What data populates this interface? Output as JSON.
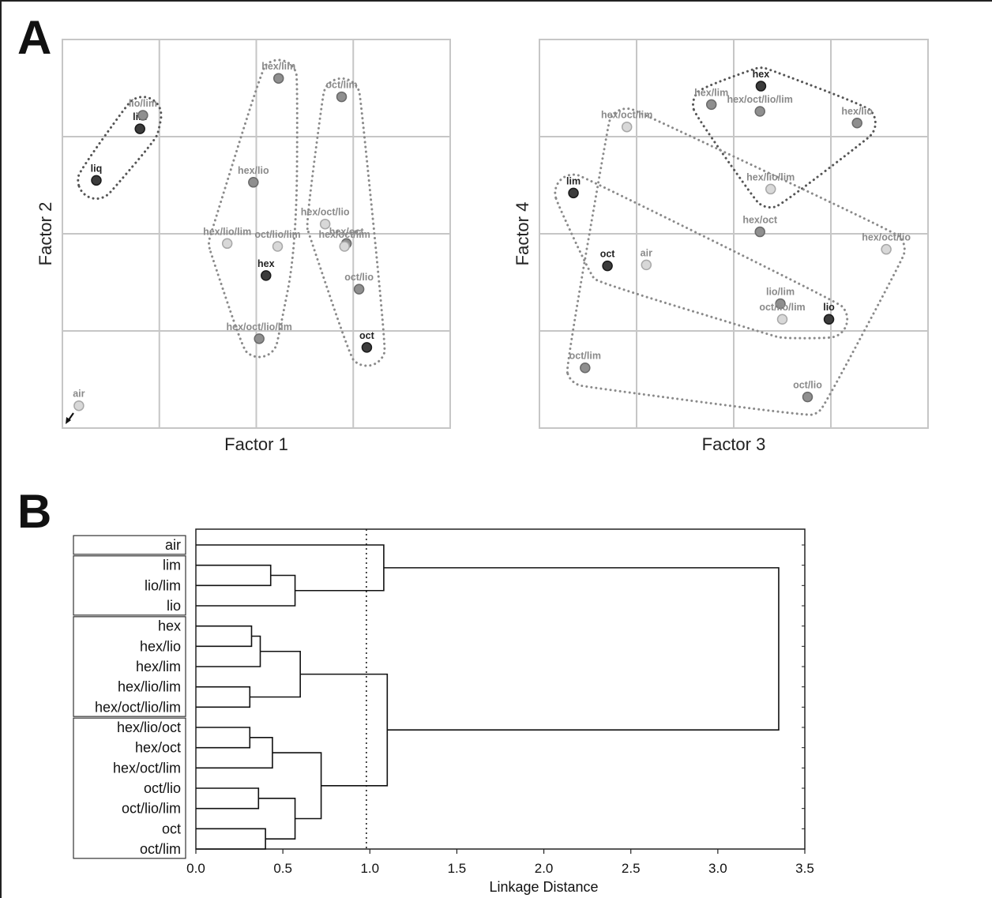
{
  "panel_labels": {
    "a": "A",
    "b": "B"
  },
  "colors": {
    "grid": "#c6c6c6",
    "dots": "#888888",
    "text_light": "#8a8a8a",
    "text_dark": "#222222"
  },
  "chart_data": [
    {
      "type": "scatter",
      "xlabel": "Factor 1",
      "ylabel": "Factor 2",
      "xlim": [
        0,
        4
      ],
      "ylim": [
        0,
        4
      ],
      "grid": true,
      "points": [
        {
          "label": "air",
          "x": 0.17,
          "y": 0.23,
          "tone": "light"
        },
        {
          "label": "liq",
          "x": 0.35,
          "y": 2.55,
          "tone": "dark"
        },
        {
          "label": "lim",
          "x": 0.8,
          "y": 3.08,
          "tone": "dark"
        },
        {
          "label": "lio/lim",
          "x": 0.83,
          "y": 3.22,
          "tone": "mid"
        },
        {
          "label": "hex/lim",
          "x": 2.23,
          "y": 3.6,
          "tone": "mid"
        },
        {
          "label": "oct/lim",
          "x": 2.88,
          "y": 3.41,
          "tone": "mid"
        },
        {
          "label": "hex/lio",
          "x": 1.97,
          "y": 2.53,
          "tone": "mid"
        },
        {
          "label": "hex/oct/lio",
          "x": 2.71,
          "y": 2.1,
          "tone": "light"
        },
        {
          "label": "hex/lio/lim",
          "x": 1.7,
          "y": 1.9,
          "tone": "light"
        },
        {
          "label": "oct/lio/lim",
          "x": 2.22,
          "y": 1.87,
          "tone": "light"
        },
        {
          "label": "hex/oct",
          "x": 2.93,
          "y": 1.9,
          "tone": "mid"
        },
        {
          "label": "hex/oct/lim",
          "x": 2.91,
          "y": 1.87,
          "tone": "light"
        },
        {
          "label": "hex",
          "x": 2.1,
          "y": 1.57,
          "tone": "dark"
        },
        {
          "label": "oct/lio",
          "x": 3.06,
          "y": 1.43,
          "tone": "mid"
        },
        {
          "label": "hex/oct/lio/lim",
          "x": 2.03,
          "y": 0.92,
          "tone": "mid"
        },
        {
          "label": "oct",
          "x": 3.14,
          "y": 0.83,
          "tone": "dark"
        }
      ],
      "groups": [
        [
          "lio/lim",
          "lim",
          "liq"
        ],
        [
          "hex/lim",
          "hex/lio",
          "hex/lio/lim",
          "oct/lio/lim",
          "hex",
          "hex/oct/lio/lim"
        ],
        [
          "oct/lim",
          "hex/oct/lio",
          "hex/oct",
          "hex/oct/lim",
          "oct/lio",
          "oct"
        ]
      ]
    },
    {
      "type": "scatter",
      "xlabel": "Factor 3",
      "ylabel": "Factor 4",
      "xlim": [
        0,
        4
      ],
      "ylim": [
        0,
        4
      ],
      "grid": true,
      "points": [
        {
          "label": "hex",
          "x": 2.28,
          "y": 3.52,
          "tone": "dark"
        },
        {
          "label": "hex/lim",
          "x": 1.77,
          "y": 3.33,
          "tone": "mid"
        },
        {
          "label": "hex/oct/lio/lim",
          "x": 2.27,
          "y": 3.26,
          "tone": "mid"
        },
        {
          "label": "hex/lio",
          "x": 3.27,
          "y": 3.14,
          "tone": "mid"
        },
        {
          "label": "hex/oct/lim",
          "x": 0.9,
          "y": 3.1,
          "tone": "light"
        },
        {
          "label": "hex/lio/lim",
          "x": 2.38,
          "y": 2.46,
          "tone": "light"
        },
        {
          "label": "lim",
          "x": 0.35,
          "y": 2.42,
          "tone": "dark"
        },
        {
          "label": "hex/oct",
          "x": 2.27,
          "y": 2.02,
          "tone": "mid"
        },
        {
          "label": "hex/oct/lio",
          "x": 3.57,
          "y": 1.84,
          "tone": "light"
        },
        {
          "label": "air",
          "x": 1.1,
          "y": 1.68,
          "tone": "light"
        },
        {
          "label": "oct",
          "x": 0.7,
          "y": 1.67,
          "tone": "dark"
        },
        {
          "label": "lio/lim",
          "x": 2.48,
          "y": 1.28,
          "tone": "mid"
        },
        {
          "label": "oct/lio/lim",
          "x": 2.5,
          "y": 1.12,
          "tone": "light"
        },
        {
          "label": "lio",
          "x": 2.98,
          "y": 1.12,
          "tone": "dark"
        },
        {
          "label": "oct/lim",
          "x": 0.47,
          "y": 0.62,
          "tone": "mid"
        },
        {
          "label": "oct/lio",
          "x": 2.76,
          "y": 0.32,
          "tone": "mid"
        }
      ],
      "groups": [
        [
          "hex",
          "hex/lim",
          "hex/oct/lio/lim",
          "hex/lio",
          "hex/lio/lim"
        ],
        [
          "lim",
          "oct",
          "lio/lim",
          "oct/lio/lim",
          "lio"
        ],
        [
          "hex/oct/lim",
          "hex/oct",
          "hex/oct/lio",
          "air",
          "oct/lim",
          "oct/lio"
        ]
      ]
    },
    {
      "type": "dendrogram",
      "xlabel": "Linkage Distance",
      "xlim": [
        0,
        3.5
      ],
      "xticks": [
        0.0,
        0.5,
        1.0,
        1.5,
        2.0,
        2.5,
        3.0,
        3.5
      ],
      "xtick_labels": [
        "0.0",
        "0.5",
        "1.0",
        "1.5",
        "2.0",
        "2.5",
        "3.0",
        "3.5"
      ],
      "cutoff": 0.98,
      "leaves": [
        "air",
        "lim",
        "lio/lim",
        "lio",
        "hex",
        "hex/lio",
        "hex/lim",
        "hex/lio/lim",
        "hex/oct/lio/lim",
        "hex/lio/oct",
        "hex/oct",
        "hex/oct/lim",
        "oct/lio",
        "oct/lio/lim",
        "oct",
        "oct/lim"
      ],
      "leaf_groups": [
        [
          0,
          0
        ],
        [
          1,
          3
        ],
        [
          4,
          8
        ],
        [
          9,
          15
        ]
      ],
      "merges": [
        {
          "a": "lim",
          "b": "lio/lim",
          "height": 0.43
        },
        {
          "a": "m0",
          "b": "lio",
          "height": 0.57
        },
        {
          "a": "air",
          "b": "m1",
          "height": 1.08
        },
        {
          "a": "hex",
          "b": "hex/lio",
          "height": 0.32
        },
        {
          "a": "m3",
          "b": "hex/lim",
          "height": 0.37
        },
        {
          "a": "hex/lio/lim",
          "b": "hex/oct/lio/lim",
          "height": 0.31
        },
        {
          "a": "m4",
          "b": "m5",
          "height": 0.6
        },
        {
          "a": "hex/lio/oct",
          "b": "hex/oct",
          "height": 0.31
        },
        {
          "a": "m7",
          "b": "hex/oct/lim",
          "height": 0.44
        },
        {
          "a": "oct/lio",
          "b": "oct/lio/lim",
          "height": 0.36
        },
        {
          "a": "oct",
          "b": "oct/lim",
          "height": 0.4
        },
        {
          "a": "m9",
          "b": "m10",
          "height": 0.57
        },
        {
          "a": "m8",
          "b": "m11",
          "height": 0.72
        },
        {
          "a": "m6",
          "b": "m12",
          "height": 1.1
        },
        {
          "a": "m2",
          "b": "m13",
          "height": 3.35
        }
      ]
    }
  ]
}
